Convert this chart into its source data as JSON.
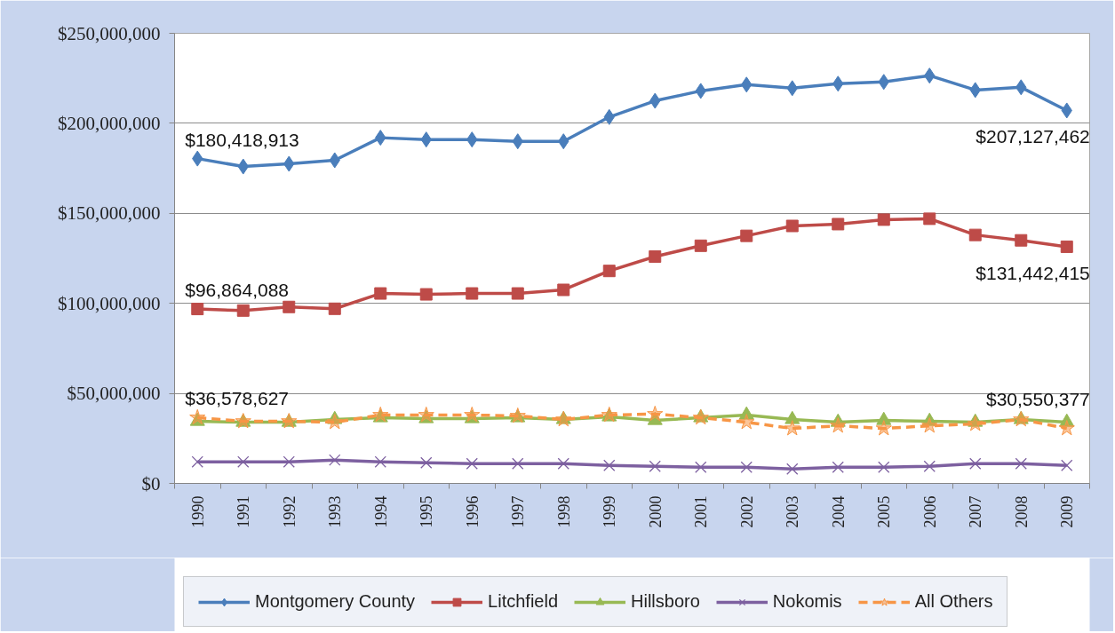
{
  "chart_data": {
    "type": "line",
    "categories": [
      "1990",
      "1991",
      "1992",
      "1993",
      "1994",
      "1995",
      "1996",
      "1997",
      "1998",
      "1999",
      "2000",
      "2001",
      "2002",
      "2003",
      "2004",
      "2005",
      "2006",
      "2007",
      "2008",
      "2009"
    ],
    "ylim": [
      0,
      250000000
    ],
    "yticks": [
      {
        "value": 0,
        "label": "$0"
      },
      {
        "value": 50000000,
        "label": "$50,000,000"
      },
      {
        "value": 100000000,
        "label": "$100,000,000"
      },
      {
        "value": 150000000,
        "label": "$150,000,000"
      },
      {
        "value": 200000000,
        "label": "$200,000,000"
      },
      {
        "value": 250000000,
        "label": "$250,000,000"
      }
    ],
    "grid": "y",
    "legend": "bottom",
    "series": [
      {
        "name": "Montgomery County",
        "color": "#4a7ebb",
        "marker": "diamond",
        "values": [
          180418913,
          176000000,
          177500000,
          179500000,
          192000000,
          191000000,
          191000000,
          190000000,
          190000000,
          203500000,
          212500000,
          218000000,
          221500000,
          219500000,
          222000000,
          223000000,
          226500000,
          218500000,
          220000000,
          207127462
        ],
        "value_labels": [
          "$180,418,913",
          null,
          null,
          null,
          null,
          null,
          null,
          null,
          null,
          null,
          null,
          null,
          null,
          null,
          null,
          null,
          null,
          null,
          null,
          "$207,127,462"
        ]
      },
      {
        "name": "Litchfield",
        "color": "#be4b48",
        "marker": "square",
        "values": [
          96864088,
          96000000,
          98000000,
          97000000,
          105500000,
          105000000,
          105500000,
          105500000,
          107500000,
          118000000,
          126000000,
          132000000,
          137500000,
          143000000,
          144000000,
          146500000,
          147000000,
          138000000,
          135000000,
          131442415
        ],
        "value_labels": [
          "$96,864,088",
          null,
          null,
          null,
          null,
          null,
          null,
          null,
          null,
          null,
          null,
          null,
          null,
          null,
          null,
          null,
          null,
          null,
          null,
          "$131,442,415"
        ]
      },
      {
        "name": "Hillsboro",
        "color": "#98b954",
        "marker": "triangle",
        "values": [
          34500000,
          34000000,
          34000000,
          35500000,
          36500000,
          36000000,
          36000000,
          36500000,
          35500000,
          37000000,
          35000000,
          36500000,
          38000000,
          35500000,
          34000000,
          35000000,
          34500000,
          34000000,
          35500000,
          34000000
        ]
      },
      {
        "name": "Nokomis",
        "color": "#7d60a0",
        "marker": "cross",
        "values": [
          12000000,
          12000000,
          12000000,
          13000000,
          12000000,
          11500000,
          11000000,
          11000000,
          11000000,
          10000000,
          9500000,
          9000000,
          9000000,
          8000000,
          9000000,
          9000000,
          9500000,
          11000000,
          11000000,
          10000000
        ]
      },
      {
        "name": "All Others",
        "color": "#f79646",
        "marker": "star",
        "line_style": "dashed",
        "values": [
          36578627,
          34500000,
          34500000,
          34000000,
          38000000,
          38000000,
          38000000,
          37500000,
          35500000,
          38000000,
          38500000,
          36500000,
          34000000,
          30500000,
          32000000,
          30500000,
          32000000,
          33000000,
          35500000,
          30550377
        ],
        "value_labels": [
          "$36,578,627",
          null,
          null,
          null,
          null,
          null,
          null,
          null,
          null,
          null,
          null,
          null,
          null,
          null,
          null,
          null,
          null,
          null,
          null,
          "$30,550,377"
        ]
      }
    ]
  }
}
